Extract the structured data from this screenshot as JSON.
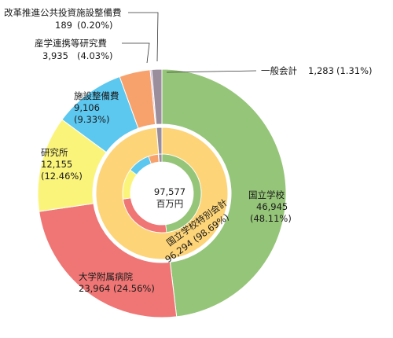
{
  "chart_data": {
    "type": "pie",
    "variant": "double-donut",
    "center_label": {
      "value": "97,577",
      "unit": "百万円"
    },
    "outer_ring": [
      {
        "name": "国立学校",
        "value": 46945,
        "value_text": "46,945",
        "pct_text": "(48.11%)",
        "color": "#95c578"
      },
      {
        "name": "大学附属病院",
        "value": 23964,
        "value_text": "23,964",
        "pct_text": "(24.56%)",
        "color": "#ef7675"
      },
      {
        "name": "研究所",
        "value": 12155,
        "value_text": "12,155",
        "pct_text": "(12.46%)",
        "color": "#fbf47b"
      },
      {
        "name": "施設整備費",
        "value": 9106,
        "value_text": "9,106",
        "pct_text": "(9.33%)",
        "color": "#5cc7ef"
      },
      {
        "name": "産学連携等研究費",
        "value": 3935,
        "value_text": "3,935",
        "pct_text": "(4.03%)",
        "color": "#f7a26c"
      },
      {
        "name": "改革推進公共投資施設整備費",
        "value": 189,
        "value_text": "189",
        "pct_text": "(0.20%)",
        "color": "#c4a0c4"
      },
      {
        "name": "一般会計",
        "value": 1283,
        "value_text": "1,283",
        "pct_text": "(1.31%)",
        "color": "#9a8d9c"
      }
    ],
    "inner_ring": [
      {
        "name": "国立学校特別会計",
        "value": 96294,
        "value_text": "96,294",
        "pct_text": "(98.69%)",
        "color": "#fdd478"
      },
      {
        "name": "一般会計",
        "value": 1283,
        "color": "#9a8d9c"
      }
    ]
  }
}
